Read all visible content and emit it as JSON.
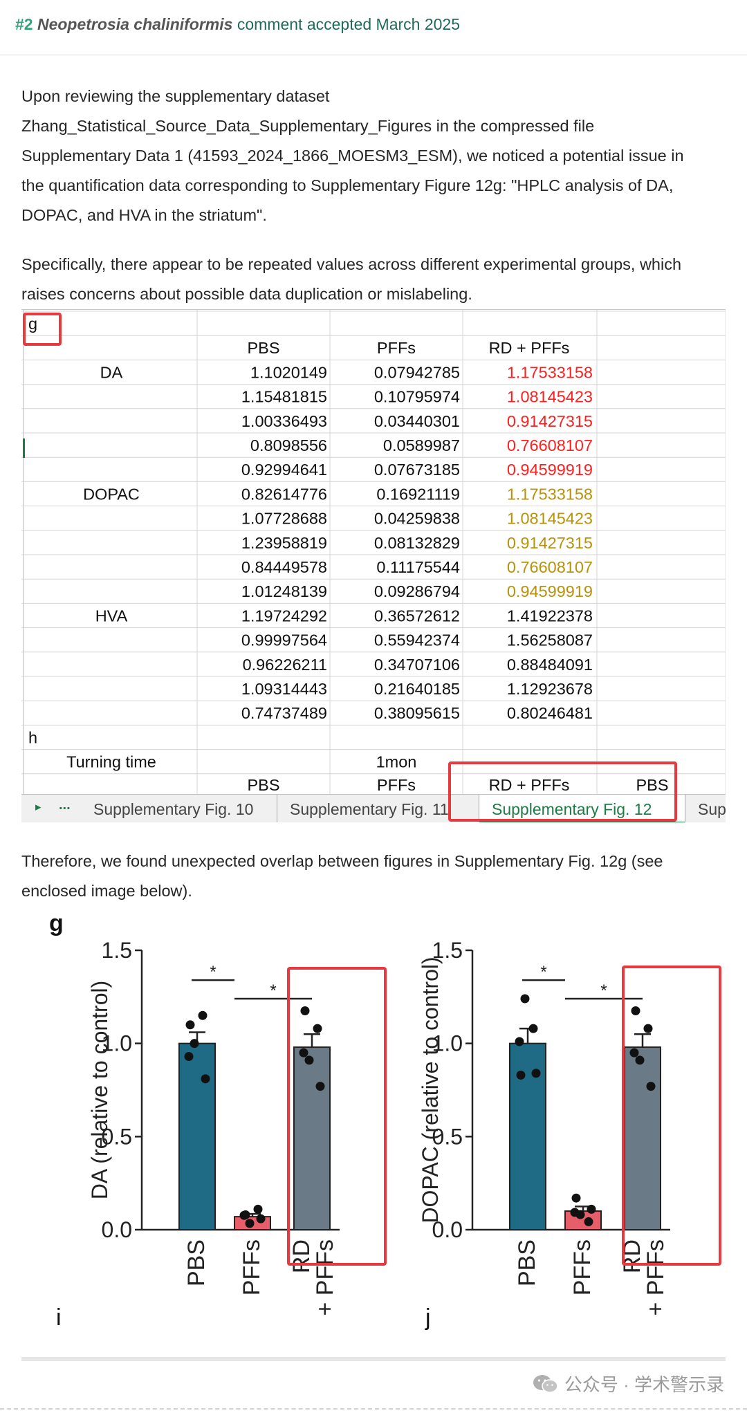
{
  "header": {
    "number": "#2",
    "species": "Neopetrosia chaliniformis",
    "status": "comment accepted March 2025"
  },
  "paragraphs": {
    "p1": [
      "Upon reviewing the supplementary dataset",
      "Zhang_Statistical_Source_Data_Supplementary_Figures in the compressed file",
      "Supplementary Data 1 (41593_2024_1866_MOESM3_ESM), we noticed a potential issue in",
      "the quantification data corresponding to Supplementary Figure 12g: \"HPLC analysis of DA,",
      "DOPAC, and HVA in the striatum\"."
    ],
    "p2": [
      "Specifically, there appear to be repeated values across different experimental groups, which",
      "raises concerns about possible data duplication or mislabeling."
    ],
    "p3": [
      "Therefore, we found unexpected overlap between figures in Supplementary Fig. 12g (see",
      "enclosed image below)."
    ]
  },
  "sheet": {
    "section_g": "g",
    "columns": [
      "PBS",
      "PFFs",
      "RD + PFFs"
    ],
    "groups": [
      {
        "label": "DA",
        "row": 0
      },
      {
        "label": "DOPAC",
        "row": 5
      },
      {
        "label": "HVA",
        "row": 10
      }
    ],
    "rows": [
      [
        "1.1020149",
        "0.07942785",
        "1.17533158"
      ],
      [
        "1.15481815",
        "0.10795974",
        "1.08145423"
      ],
      [
        "1.00336493",
        "0.03440301",
        "0.91427315"
      ],
      [
        "0.8098556",
        "0.0589987",
        "0.76608107"
      ],
      [
        "0.92994641",
        "0.07673185",
        "0.94599919"
      ],
      [
        "0.82614776",
        "0.16921119",
        "1.17533158"
      ],
      [
        "1.07728688",
        "0.04259838",
        "1.08145423"
      ],
      [
        "1.23958819",
        "0.08132829",
        "0.91427315"
      ],
      [
        "0.84449578",
        "0.11175544",
        "0.76608107"
      ],
      [
        "1.01248139",
        "0.09286794",
        "0.94599919"
      ],
      [
        "1.19724292",
        "0.36572612",
        "1.41922378"
      ],
      [
        "0.99997564",
        "0.55942374",
        "1.56258087"
      ],
      [
        "0.96226211",
        "0.34707106",
        "0.88484091"
      ],
      [
        "1.09314443",
        "0.21640185",
        "1.12923678"
      ],
      [
        "0.74737489",
        "0.38095615",
        "0.80246481"
      ]
    ],
    "row_colors": [
      "red",
      "red",
      "red",
      "red",
      "red",
      "gold",
      "gold",
      "gold",
      "gold",
      "gold",
      "black",
      "black",
      "black",
      "black",
      "black"
    ],
    "colors": {
      "red": "#ff1f1f",
      "gold": "#b8920a",
      "black": "#111111"
    },
    "section_h": "h",
    "turning_time_label": "Turning time",
    "turning_time_value": "1mon",
    "h_columns": [
      "PBS",
      "PFFs",
      "RD + PFFs",
      "PBS"
    ],
    "tabs": {
      "nav_arrow": "▸",
      "nav_more": "...",
      "items": [
        "Supplementary Fig. 10",
        "Supplementary Fig. 11",
        "Supplementary Fig. 12",
        "Suppl"
      ],
      "active_index": 2
    }
  },
  "figure": {
    "letters": {
      "g": "g",
      "i": "i",
      "j": "j"
    }
  },
  "chart_data": [
    {
      "type": "bar",
      "categories": [
        "PBS",
        "PFFs",
        "RD + PFFs"
      ],
      "category_lines": [
        [
          "PBS"
        ],
        [
          "PFFs"
        ],
        [
          "RD",
          "+ PFFs"
        ]
      ],
      "values": [
        1.0,
        0.07,
        0.98
      ],
      "errors": [
        0.06,
        0.015,
        0.07
      ],
      "points": [
        [
          1.1,
          1.15,
          1.0,
          0.81,
          0.93
        ],
        [
          0.08,
          0.11,
          0.034,
          0.059,
          0.077
        ],
        [
          1.175,
          1.08,
          0.91,
          0.77,
          0.95
        ]
      ],
      "bar_colors": [
        "#1f6b86",
        "#e85d6a",
        "#6a7a86"
      ],
      "ylabel": "DA (relative to control)",
      "ylim": [
        0,
        1.5
      ],
      "yticks": [
        "0.0",
        "0.5",
        "1.0",
        "1.5"
      ],
      "significance": [
        {
          "from": 0,
          "to": 1,
          "label": "*"
        },
        {
          "from": 1,
          "to": 2,
          "label": "*"
        }
      ]
    },
    {
      "type": "bar",
      "categories": [
        "PBS",
        "PFFs",
        "RD + PFFs"
      ],
      "category_lines": [
        [
          "PBS"
        ],
        [
          "PFFs"
        ],
        [
          "RD",
          "+ PFFs"
        ]
      ],
      "values": [
        1.0,
        0.1,
        0.98
      ],
      "errors": [
        0.08,
        0.025,
        0.07
      ],
      "points": [
        [
          0.83,
          1.08,
          1.24,
          0.84,
          1.01
        ],
        [
          0.17,
          0.043,
          0.081,
          0.11,
          0.093
        ],
        [
          1.175,
          1.08,
          0.91,
          0.77,
          0.95
        ]
      ],
      "bar_colors": [
        "#1f6b86",
        "#e85d6a",
        "#6a7a86"
      ],
      "ylabel": "DOPAC (relative to control)",
      "ylim": [
        0,
        1.5
      ],
      "yticks": [
        "0.0",
        "0.5",
        "1.0",
        "1.5"
      ],
      "significance": [
        {
          "from": 0,
          "to": 1,
          "label": "*"
        },
        {
          "from": 1,
          "to": 2,
          "label": "*"
        }
      ]
    }
  ],
  "watermark": {
    "icon": "wechat-icon",
    "text": "公众号 · 学术警示录"
  }
}
